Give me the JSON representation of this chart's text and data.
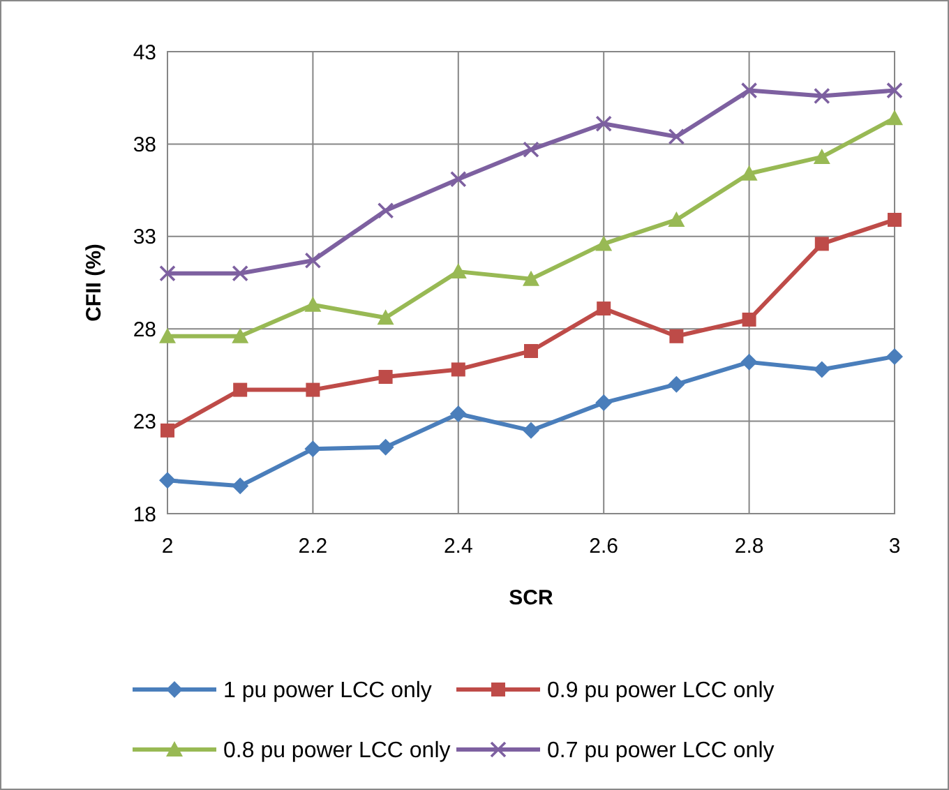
{
  "chart_data": {
    "type": "line",
    "xlabel": "SCR",
    "ylabel": "CFII (%)",
    "x": [
      2,
      2.1,
      2.2,
      2.3,
      2.4,
      2.5,
      2.6,
      2.7,
      2.8,
      2.9,
      3
    ],
    "xlim": [
      2,
      3
    ],
    "xticks": [
      2,
      2.2,
      2.4,
      2.6,
      2.8,
      3
    ],
    "ylim": [
      18,
      43
    ],
    "yticks": [
      18,
      23,
      28,
      33,
      38,
      43
    ],
    "grid": true,
    "legend": "bottom",
    "series": [
      {
        "name": "1 pu power LCC only",
        "color": "#4a7ebb",
        "marker": "diamond",
        "values": [
          19.8,
          19.5,
          21.5,
          21.6,
          23.4,
          22.5,
          24.0,
          25.0,
          26.2,
          25.8,
          26.5
        ]
      },
      {
        "name": "0.9 pu power LCC only",
        "color": "#be4b48",
        "marker": "square",
        "values": [
          22.5,
          24.7,
          24.7,
          25.4,
          25.8,
          26.8,
          29.1,
          27.6,
          28.5,
          32.6,
          33.9
        ]
      },
      {
        "name": "0.8 pu power LCC only",
        "color": "#98b954",
        "marker": "triangle",
        "values": [
          27.6,
          27.6,
          29.3,
          28.6,
          31.1,
          30.7,
          32.6,
          33.9,
          36.4,
          37.3,
          39.4
        ]
      },
      {
        "name": "0.7 pu power LCC only",
        "color": "#7d60a0",
        "marker": "cross",
        "values": [
          31.0,
          31.0,
          31.7,
          34.4,
          36.1,
          37.7,
          39.1,
          38.4,
          40.9,
          40.6,
          40.9
        ]
      }
    ]
  }
}
